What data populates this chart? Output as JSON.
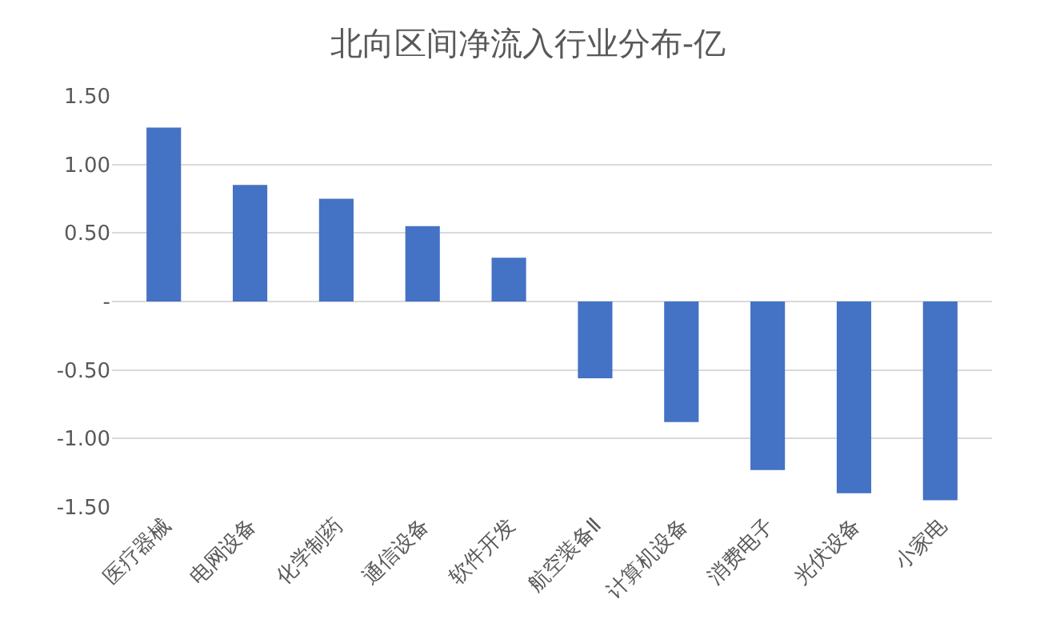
{
  "chart_data": {
    "type": "bar",
    "title": "北向区间净流入行业分布-亿",
    "categories": [
      "医疗器械",
      "电网设备",
      "化学制药",
      "通信设备",
      "软件开发",
      "航空装备Ⅱ",
      "计算机设备",
      "消费电子",
      "光伏设备",
      "小家电"
    ],
    "values": [
      1.27,
      0.85,
      0.75,
      0.55,
      0.32,
      -0.56,
      -0.88,
      -1.23,
      -1.4,
      -1.45
    ],
    "color": "#4472c4",
    "ylim": [
      -1.5,
      1.5
    ],
    "yticks": [
      {
        "value": -1.5,
        "label": "-1.50"
      },
      {
        "value": -1,
        "label": "-1.00"
      },
      {
        "value": -0.5,
        "label": "-0.50"
      },
      {
        "value": 0,
        "label": "-"
      },
      {
        "value": 0.5,
        "label": "0.50"
      },
      {
        "value": 1,
        "label": "1.00"
      },
      {
        "value": 1.5,
        "label": "1.50"
      }
    ],
    "grid": "y"
  }
}
